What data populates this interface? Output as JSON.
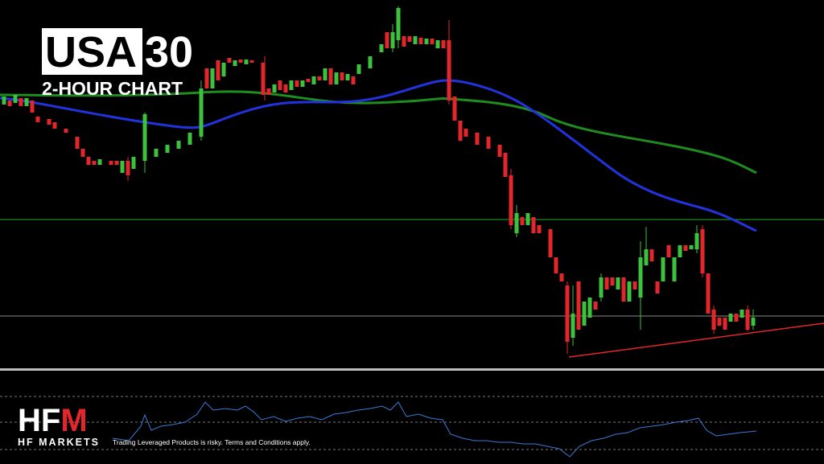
{
  "header": {
    "symbol_highlight": "USA",
    "symbol_rest": "30",
    "subtitle": "2-HOUR CHART"
  },
  "logo": {
    "mark_white": "HF",
    "mark_red": "M",
    "name": "HF MARKETS"
  },
  "disclaimer": "Trading Leveraged Products is risky. Terms and Conditions apply."
}
